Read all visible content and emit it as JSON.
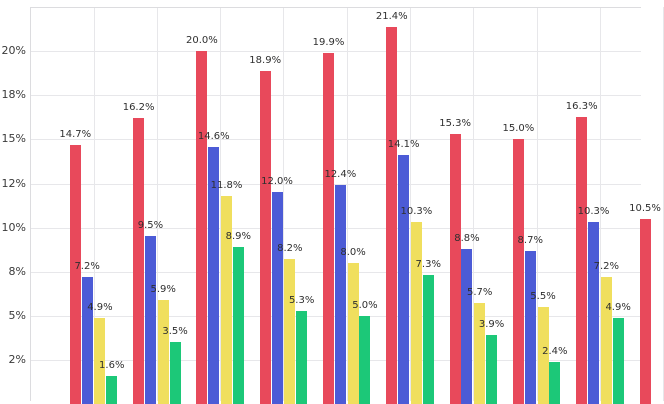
{
  "chart_data": {
    "type": "bar",
    "title": "",
    "xlabel": "",
    "ylabel": "",
    "legend": false,
    "grid": true,
    "grid_color": "#e7e7ea",
    "bar_value_labels": true,
    "value_label_format": "{value:.1f}%",
    "x_axis": {
      "group_count": 10,
      "labels_visible": false,
      "note_last_group": "tenth group clipped at right edge, only red bar partially visible"
    },
    "y_axis": {
      "unit": "%",
      "range": [
        0,
        22.5
      ],
      "tick_values": [
        2.5,
        5,
        7.5,
        10,
        12.5,
        15,
        17.5,
        20
      ],
      "tick_labels": [
        "2%",
        "5%",
        "8%",
        "10%",
        "12%",
        "15%",
        "18%",
        "20%"
      ]
    },
    "series": [
      {
        "name": "red",
        "color": "#e8495b",
        "values": [
          14.7,
          16.2,
          20.0,
          18.9,
          19.9,
          21.4,
          15.3,
          15.0,
          16.3,
          10.5
        ]
      },
      {
        "name": "blue",
        "color": "#4c5bd6",
        "values": [
          7.2,
          9.5,
          14.6,
          12.0,
          12.4,
          14.1,
          8.8,
          8.7,
          10.3,
          null
        ]
      },
      {
        "name": "yellow",
        "color": "#f0df5e",
        "values": [
          4.9,
          5.9,
          11.8,
          8.2,
          8.0,
          10.3,
          5.7,
          5.5,
          7.2,
          null
        ]
      },
      {
        "name": "green",
        "color": "#1cc878",
        "values": [
          1.6,
          3.5,
          8.9,
          5.3,
          5.0,
          7.3,
          3.9,
          2.4,
          4.9,
          null
        ]
      }
    ]
  }
}
